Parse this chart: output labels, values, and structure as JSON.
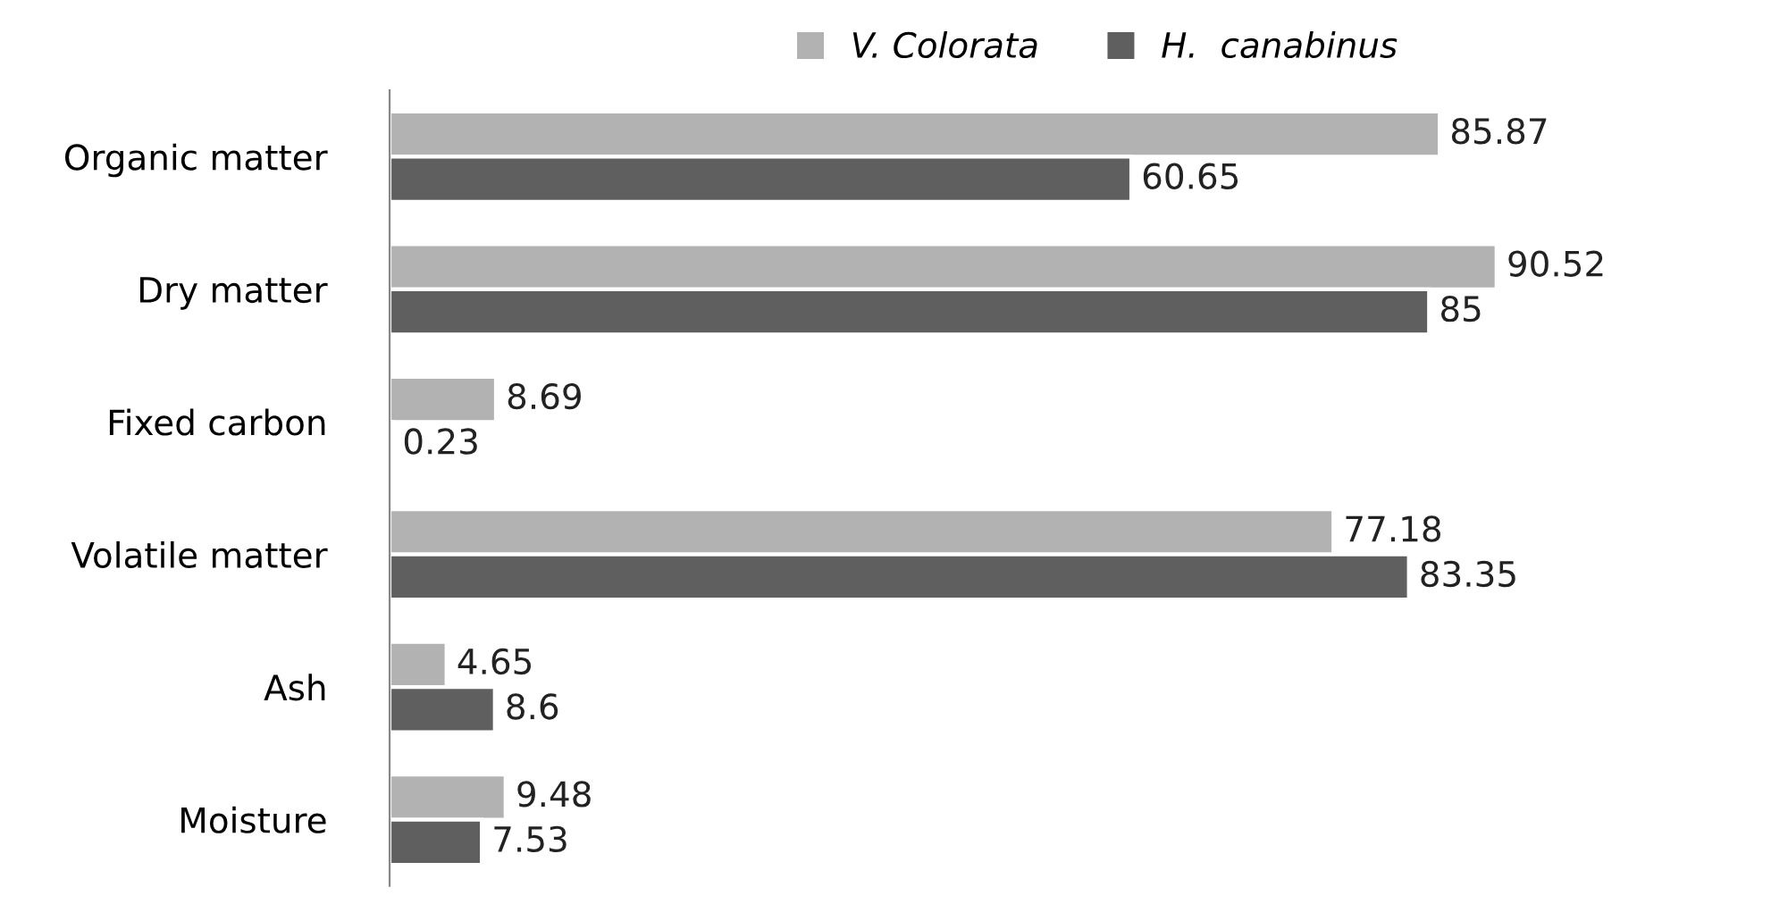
{
  "chart_data": {
    "type": "bar",
    "orientation": "horizontal",
    "categories": [
      "Organic matter",
      "Dry matter",
      "Fixed carbon",
      "Volatile matter",
      "Ash",
      "Moisture"
    ],
    "series": [
      {
        "name": "V. Colorata",
        "color": "#b2b2b2",
        "values": [
          85.87,
          90.52,
          8.69,
          77.18,
          4.65,
          9.48
        ]
      },
      {
        "name": "H.  canabinus",
        "color": "#5f5f5f",
        "values": [
          60.65,
          85,
          0.23,
          83.35,
          8.6,
          7.53
        ]
      }
    ],
    "data_labels": true,
    "legend": "top",
    "grid": false
  }
}
